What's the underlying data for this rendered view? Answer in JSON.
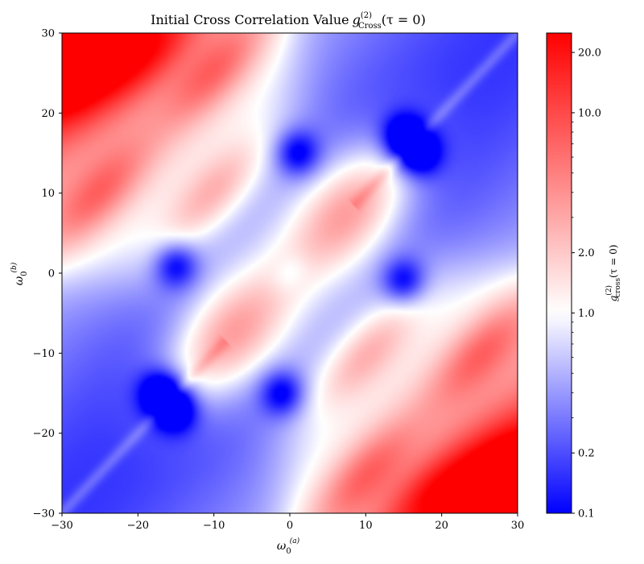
{
  "chart_data": {
    "type": "heatmap",
    "title_main": "Initial Cross Correlation Value",
    "title_math": {
      "base": "g",
      "sup": "(2)",
      "sub": "Cross",
      "args": "(τ = 0)"
    },
    "xlabel": {
      "base": "ω",
      "sub": "0",
      "sup": "(a)"
    },
    "ylabel": {
      "base": "ω",
      "sub": "0",
      "sup": "(b)"
    },
    "xlim": [
      -30,
      30
    ],
    "ylim": [
      -30,
      30
    ],
    "x_ticks": [
      -30,
      -20,
      -10,
      0,
      10,
      20,
      30
    ],
    "y_ticks": [
      -30,
      -20,
      -10,
      0,
      10,
      20,
      30
    ],
    "x_tick_labels": [
      "−30",
      "−20",
      "−10",
      "0",
      "10",
      "20",
      "30"
    ],
    "y_tick_labels": [
      "−30",
      "−20",
      "−10",
      "0",
      "10",
      "20",
      "30"
    ],
    "colorbar": {
      "label": {
        "base": "g",
        "sup": "(2)",
        "sub": "cross",
        "args": "(τ = 0)"
      },
      "scale": "log",
      "range": [
        0.1,
        25
      ],
      "center": 1.0,
      "ticks": [
        0.1,
        0.2,
        1.0,
        2.0,
        10.0,
        20.0
      ],
      "tick_labels": [
        "0.1",
        "0.2",
        "1.0",
        "2.0",
        "10.0",
        "20.0"
      ],
      "cmap": [
        "#0000ff",
        "#ffffff",
        "#ff0000"
      ]
    },
    "features": {
      "red_lobes": [
        [
          -8,
          -8,
          15
        ],
        [
          8,
          8,
          15
        ],
        [
          -27,
          27,
          25
        ],
        [
          27,
          -27,
          25
        ],
        [
          -10,
          10,
          3.5
        ],
        [
          10,
          -10,
          3.5
        ],
        [
          -25,
          10,
          4
        ],
        [
          25,
          -10,
          4
        ],
        [
          -10,
          25,
          4
        ],
        [
          10,
          -25,
          4
        ],
        [
          -17,
          28,
          3
        ],
        [
          17,
          -28,
          3
        ]
      ],
      "blue_dips": [
        [
          -15,
          -17,
          0.12
        ],
        [
          -17,
          -15,
          0.12
        ],
        [
          15,
          17,
          0.12
        ],
        [
          17,
          15,
          0.12
        ],
        [
          -15,
          1,
          0.2
        ],
        [
          15,
          -1,
          0.2
        ],
        [
          1,
          15,
          0.2
        ],
        [
          -1,
          -15,
          0.2
        ]
      ]
    }
  }
}
